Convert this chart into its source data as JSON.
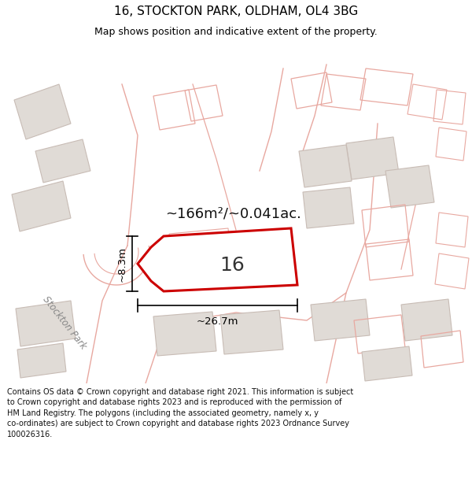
{
  "title": "16, STOCKTON PARK, OLDHAM, OL4 3BG",
  "subtitle": "Map shows position and indicative extent of the property.",
  "footer": "Contains OS data © Crown copyright and database right 2021. This information is subject\nto Crown copyright and database rights 2023 and is reproduced with the permission of\nHM Land Registry. The polygons (including the associated geometry, namely x, y\nco-ordinates) are subject to Crown copyright and database rights 2023 Ordnance Survey\n100026316.",
  "area_label": "~166m²/~0.041ac.",
  "width_label": "~26.7m",
  "height_label": "~8.3m",
  "property_number": "16",
  "road_label": "Stockton Park",
  "map_bg": "#ffffff",
  "building_fill": "#e0dbd6",
  "building_edge": "#c8bcb5",
  "outline_color": "#e8a8a0",
  "property_edge": "#cc0000",
  "property_fill": "#ffffff"
}
